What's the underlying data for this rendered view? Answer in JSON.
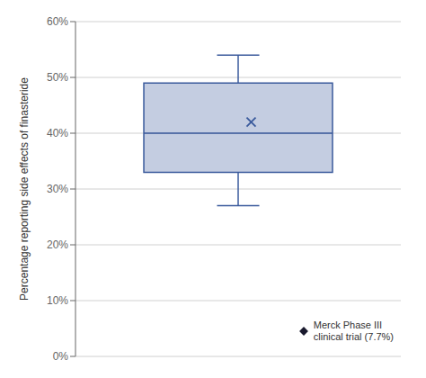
{
  "chart_data": {
    "type": "box",
    "ylabel": "Percentage reporting side effects of finasteride",
    "box": {
      "whisker_low": 27,
      "q1": 33,
      "median": 40,
      "q3": 49,
      "whisker_high": 54,
      "mean": 42
    },
    "color": "#3a5a9c",
    "ylim": [
      0,
      60
    ],
    "yticks": [
      {
        "value": 0,
        "label": "0%"
      },
      {
        "value": 10,
        "label": "10%"
      },
      {
        "value": 20,
        "label": "20%"
      },
      {
        "value": 30,
        "label": "30%"
      },
      {
        "value": 40,
        "label": "40%"
      },
      {
        "value": 50,
        "label": "50%"
      },
      {
        "value": 60,
        "label": "60%"
      }
    ],
    "grid": true,
    "tick_labels": "y",
    "legend": "lower right",
    "series": [
      {
        "name": "Merck Phase III\nclinical trial (7.7%)",
        "marker": "diamond",
        "color": "#1a1a2e"
      }
    ]
  }
}
